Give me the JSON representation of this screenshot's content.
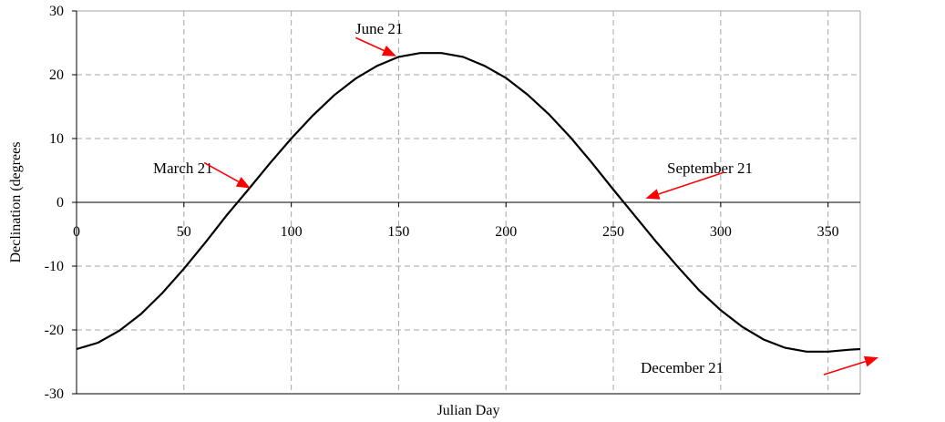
{
  "chart_data": {
    "type": "line",
    "title": "",
    "xlabel": "Julian Day",
    "ylabel": "Declination (degrees",
    "xlim": [
      0,
      365
    ],
    "ylim": [
      -30,
      30
    ],
    "x_ticks": [
      0,
      50,
      100,
      150,
      200,
      250,
      300,
      350
    ],
    "y_ticks": [
      -30,
      -20,
      -10,
      0,
      10,
      20,
      30
    ],
    "grid": true,
    "series": [
      {
        "x": [
          0,
          10,
          20,
          30,
          40,
          50,
          60,
          70,
          80,
          90,
          100,
          110,
          120,
          130,
          140,
          150,
          160,
          170,
          180,
          190,
          200,
          210,
          220,
          230,
          240,
          250,
          260,
          270,
          280,
          290,
          300,
          310,
          320,
          330,
          340,
          350,
          360,
          365
        ],
        "y": [
          -23.0,
          -22.0,
          -20.1,
          -17.5,
          -14.2,
          -10.4,
          -6.3,
          -2.0,
          2.0,
          6.1,
          10.0,
          13.6,
          16.8,
          19.4,
          21.4,
          22.8,
          23.4,
          23.4,
          22.8,
          21.4,
          19.5,
          16.9,
          13.8,
          10.2,
          6.2,
          2.0,
          -2.1,
          -6.2,
          -10.1,
          -13.8,
          -16.9,
          -19.5,
          -21.5,
          -22.8,
          -23.4,
          -23.4,
          -23.1,
          -23.0
        ]
      }
    ],
    "annotations": [
      {
        "text": "June 21",
        "arrow_target": [
          149,
          22.9
        ],
        "arrow_from": [
          130,
          25.8
        ]
      },
      {
        "text": "March 21",
        "arrow_target": [
          81,
          2.2
        ],
        "arrow_from": [
          59.5,
          6.2
        ]
      },
      {
        "text": "September 21",
        "arrow_target": [
          265,
          0.6
        ],
        "arrow_from": [
          301.5,
          4.7
        ]
      },
      {
        "text": "December 21",
        "arrow_target": [
          373.5,
          -24.3
        ],
        "arrow_from": [
          348,
          -27.0
        ]
      }
    ]
  }
}
